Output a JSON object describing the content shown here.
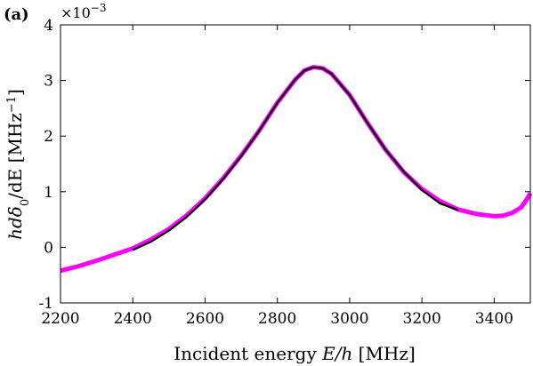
{
  "panel_label": "(a)",
  "chart_data": {
    "type": "line",
    "xlabel_text": "Incident energy ",
    "xlabel_math": "E/h",
    "xlabel_unit": " [MHz]",
    "ylabel_text": "hdδ",
    "ylabel_sub": "0",
    "ylabel_rest": "/dE [MHz",
    "ylabel_sup": "−1",
    "ylabel_end": "]",
    "y_multiplier_base": "×10",
    "y_multiplier_exp": "−3",
    "xlim": [
      2200,
      3500
    ],
    "ylim": [
      -1,
      4
    ],
    "xticks": [
      "2200",
      "2400",
      "2600",
      "2800",
      "3000",
      "3200",
      "3400"
    ],
    "yticks": [
      "-1",
      "0",
      "1",
      "2",
      "3",
      "4"
    ],
    "series": [
      {
        "color": "#ff00ff",
        "x": [
          2200,
          2250,
          2300,
          2350,
          2400,
          2450,
          2500,
          2550,
          2600,
          2650,
          2700,
          2750,
          2800,
          2850,
          2875,
          2900,
          2925,
          2950,
          3000,
          3050,
          3100,
          3150,
          3200,
          3250,
          3300,
          3350,
          3400,
          3425,
          3450,
          3475,
          3490,
          3500
        ],
        "y": [
          -0.42,
          -0.34,
          -0.24,
          -0.13,
          -0.02,
          0.14,
          0.33,
          0.58,
          0.88,
          1.24,
          1.65,
          2.1,
          2.6,
          3.02,
          3.18,
          3.24,
          3.22,
          3.12,
          2.74,
          2.23,
          1.75,
          1.35,
          1.05,
          0.83,
          0.68,
          0.6,
          0.56,
          0.57,
          0.62,
          0.72,
          0.86,
          0.97
        ]
      },
      {
        "color": "#000000",
        "x": [
          2400,
          2450,
          2500,
          2550,
          2600,
          2650,
          2700,
          2750,
          2800,
          2850,
          2875,
          2900,
          2925,
          2950,
          3000,
          3050,
          3100,
          3150,
          3200,
          3250,
          3300
        ],
        "y": [
          -0.05,
          0.1,
          0.3,
          0.55,
          0.86,
          1.23,
          1.64,
          2.1,
          2.6,
          3.02,
          3.18,
          3.24,
          3.22,
          3.12,
          2.74,
          2.23,
          1.75,
          1.36,
          1.03,
          0.79,
          0.67
        ]
      }
    ]
  }
}
